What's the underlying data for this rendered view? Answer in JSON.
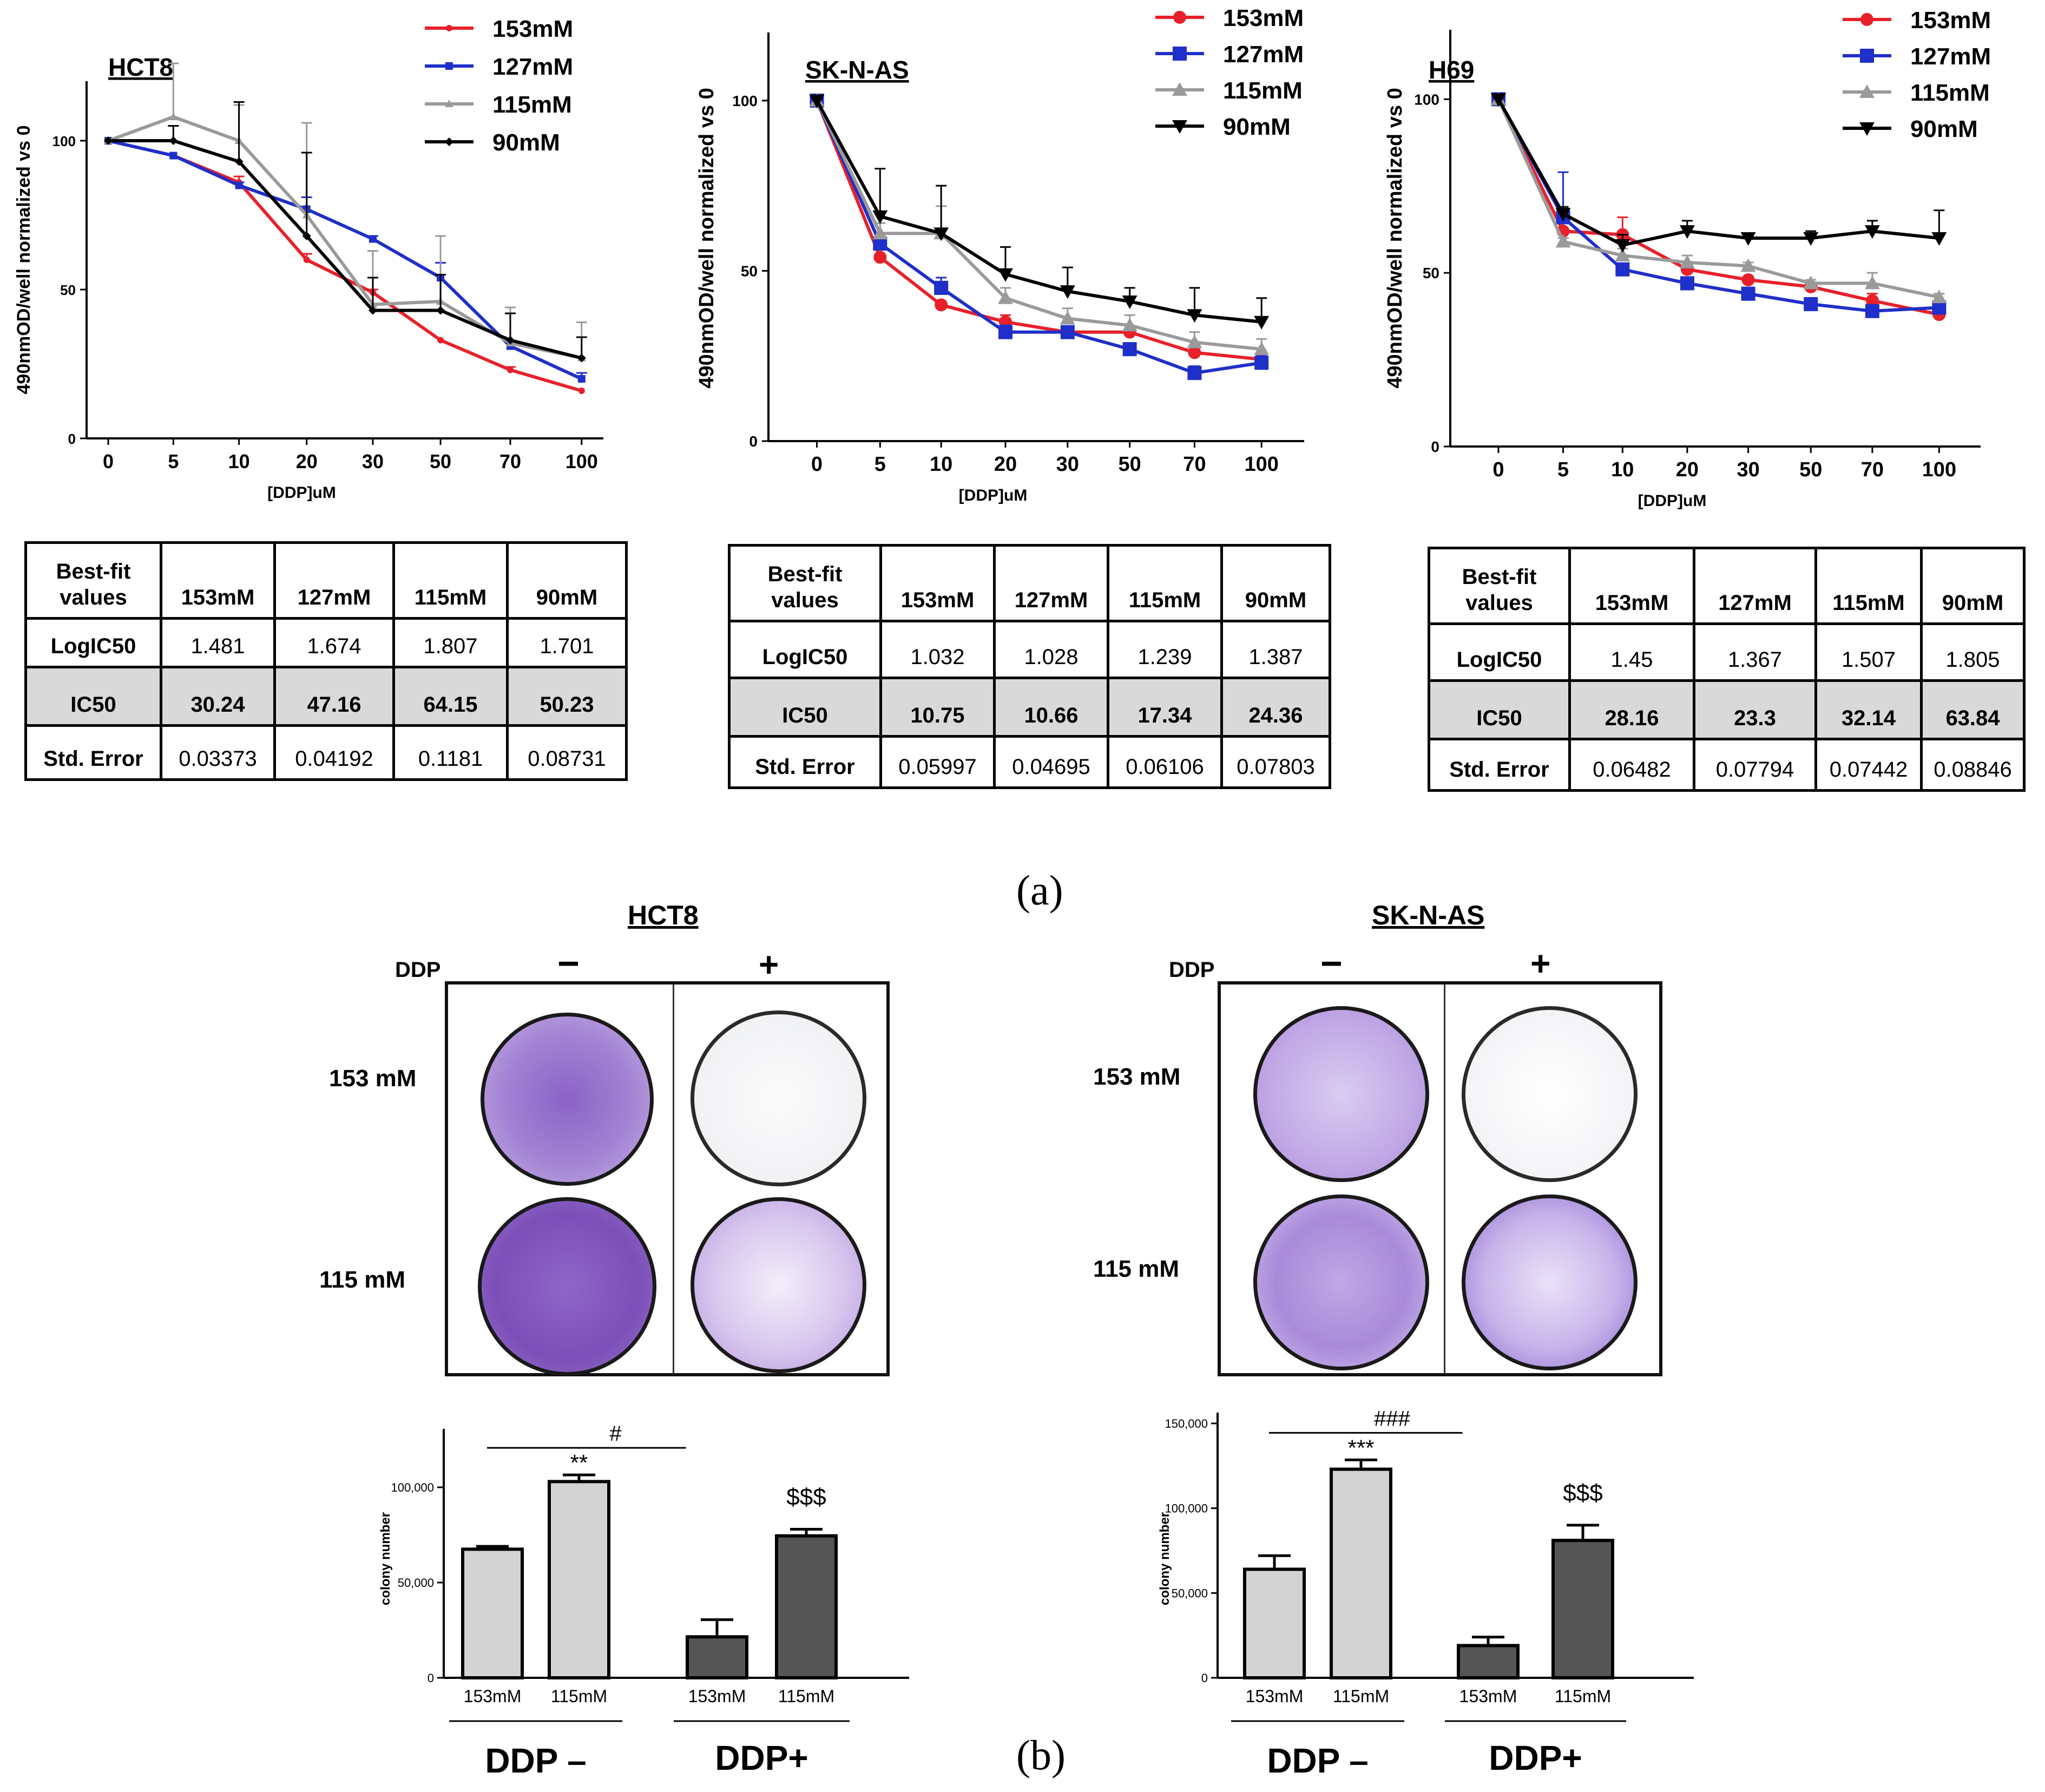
{
  "panel_labels": {
    "a": "(a)",
    "b": "(b)"
  },
  "colors": {
    "c153": "#e8202a",
    "c127": "#1f2fc9",
    "c115": "#9a9a9a",
    "c90": "#000000",
    "bar_light": "#d3d3d3",
    "bar_dark": "#555555",
    "stain_dense": "#7b4fb8",
    "stain_light": "#efe9f7"
  },
  "table_header": {
    "label_line1": "Best-fit",
    "label_line2": "values",
    "cols": [
      "153mM",
      "127mM",
      "115mM",
      "90mM"
    ]
  },
  "table_row_labels": [
    "LogIC50",
    "IC50",
    "Std. Error"
  ],
  "charts": [
    {
      "title": "HCT8",
      "ylabel": "490nmOD/well normalized vs 0",
      "xlabel": "[DDP]uM",
      "xticks": [
        "0",
        "5",
        "10",
        "20",
        "30",
        "50",
        "70",
        "100"
      ],
      "yticks": [
        "0",
        "50",
        "100"
      ],
      "legend": [
        "153mM",
        "127mM",
        "115mM",
        "90mM"
      ],
      "table": {
        "LogIC50": [
          "1.481",
          "1.674",
          "1.807",
          "1.701"
        ],
        "IC50": [
          "30.24",
          "47.16",
          "64.15",
          "50.23"
        ],
        "StdError": [
          "0.03373",
          "0.04192",
          "0.1181",
          "0.08731"
        ]
      }
    },
    {
      "title": "SK-N-AS",
      "ylabel": "490nmOD/well normalized vs 0",
      "xlabel": "[DDP]uM",
      "xticks": [
        "0",
        "5",
        "10",
        "20",
        "30",
        "50",
        "70",
        "100"
      ],
      "yticks": [
        "0",
        "50",
        "100"
      ],
      "legend": [
        "153mM",
        "127mM",
        "115mM",
        "90mM"
      ],
      "table": {
        "LogIC50": [
          "1.032",
          "1.028",
          "1.239",
          "1.387"
        ],
        "IC50": [
          "10.75",
          "10.66",
          "17.34",
          "24.36"
        ],
        "StdError": [
          "0.05997",
          "0.04695",
          "0.06106",
          "0.07803"
        ]
      }
    },
    {
      "title": "H69",
      "ylabel": "490nmOD/well normalized vs 0",
      "xlabel": "[DDP]uM",
      "xticks": [
        "0",
        "5",
        "10",
        "20",
        "30",
        "50",
        "70",
        "100"
      ],
      "yticks": [
        "0",
        "50",
        "100"
      ],
      "legend": [
        "153mM",
        "127mM",
        "115mM",
        "90mM"
      ],
      "table": {
        "LogIC50": [
          "1.45",
          "1.367",
          "1.507",
          "1.805"
        ],
        "IC50": [
          "28.16",
          "23.3",
          "32.14",
          "63.84"
        ],
        "StdError": [
          "0.06482",
          "0.07794",
          "0.07442",
          "0.08846"
        ]
      }
    }
  ],
  "colony": [
    {
      "title": "HCT8",
      "ddp_label": "DDP",
      "minus": "−",
      "plus": "+",
      "rows": [
        "153 mM",
        "115 mM"
      ],
      "ylabel": "colony number",
      "yticks": [
        "0",
        "50,000",
        "100,000"
      ],
      "bar_labels": [
        "153mM",
        "115mM",
        "153mM",
        "115mM"
      ],
      "group_labels": [
        "DDP –",
        "DDP+"
      ],
      "annotations": {
        "hash": "#",
        "stars": "**",
        "dollars": "$$$"
      }
    },
    {
      "title": "SK-N-AS",
      "ddp_label": "DDP",
      "minus": "−",
      "plus": "+",
      "rows": [
        "153 mM",
        "115 mM"
      ],
      "ylabel": "colony number",
      "yticks": [
        "0",
        "50,000",
        "100,000",
        "150,000"
      ],
      "bar_labels": [
        "153mM",
        "115mM",
        "153mM",
        "115mM"
      ],
      "group_labels": [
        "DDP –",
        "DDP+"
      ],
      "annotations": {
        "hash": "###",
        "stars": "***",
        "dollars": "$$$"
      }
    }
  ],
  "chart_data": [
    {
      "type": "line",
      "title": "HCT8",
      "xlabel": "[DDP]uM",
      "ylabel": "490nmOD/well normalized vs 0",
      "categories": [
        "0",
        "5",
        "10",
        "20",
        "30",
        "50",
        "70",
        "100"
      ],
      "ylim": [
        0,
        120
      ],
      "series": [
        {
          "name": "153mM",
          "marker": "dot",
          "values": [
            100,
            95,
            86,
            60,
            49,
            33,
            23,
            16
          ],
          "err": [
            0,
            0,
            2,
            2,
            1,
            0,
            1,
            0
          ]
        },
        {
          "name": "127mM",
          "marker": "square-small",
          "values": [
            100,
            95,
            85,
            77,
            67,
            54,
            31,
            20
          ],
          "err": [
            0,
            0,
            1,
            4,
            1,
            5,
            1,
            2
          ]
        },
        {
          "name": "115mM",
          "marker": "triangle-small",
          "values": [
            100,
            108,
            100,
            75,
            45,
            46,
            32,
            27
          ],
          "err": [
            0,
            18,
            12,
            31,
            18,
            22,
            12,
            12
          ]
        },
        {
          "name": "90mM",
          "marker": "diamond-small",
          "values": [
            100,
            100,
            93,
            68,
            43,
            43,
            33,
            27
          ],
          "err": [
            0,
            5,
            20,
            28,
            11,
            12,
            9,
            7
          ]
        }
      ]
    },
    {
      "type": "line",
      "title": "SK-N-AS",
      "xlabel": "[DDP]uM",
      "ylabel": "490nmOD/well normalized vs 0",
      "categories": [
        "0",
        "5",
        "10",
        "20",
        "30",
        "50",
        "70",
        "100"
      ],
      "ylim": [
        0,
        120
      ],
      "series": [
        {
          "name": "153mM",
          "marker": "circle",
          "values": [
            100,
            54,
            40,
            35,
            32,
            32,
            26,
            24
          ],
          "err": [
            0,
            0,
            1,
            2,
            1,
            1,
            2,
            2
          ]
        },
        {
          "name": "127mM",
          "marker": "square",
          "values": [
            100,
            58,
            45,
            32,
            32,
            27,
            20,
            23
          ],
          "err": [
            0,
            1,
            3,
            2,
            1,
            1,
            2,
            2
          ]
        },
        {
          "name": "115mM",
          "marker": "triangle",
          "values": [
            100,
            61,
            61,
            42,
            36,
            34,
            29,
            27
          ],
          "err": [
            0,
            3,
            8,
            3,
            3,
            3,
            3,
            3
          ]
        },
        {
          "name": "90mM",
          "marker": "triangle-down",
          "values": [
            100,
            66,
            61,
            49,
            44,
            41,
            37,
            35
          ],
          "err": [
            0,
            14,
            14,
            8,
            7,
            4,
            8,
            7
          ]
        }
      ]
    },
    {
      "type": "line",
      "title": "H69",
      "xlabel": "[DDP]uM",
      "ylabel": "490nmOD/well normalized vs 0",
      "categories": [
        "0",
        "5",
        "10",
        "20",
        "30",
        "50",
        "70",
        "100"
      ],
      "ylim": [
        0,
        120
      ],
      "series": [
        {
          "name": "153mM",
          "marker": "circle",
          "values": [
            100,
            62,
            61,
            51,
            48,
            46,
            42,
            38
          ],
          "err": [
            0,
            3,
            5,
            2,
            1,
            1,
            2,
            1
          ]
        },
        {
          "name": "127mM",
          "marker": "square",
          "values": [
            100,
            66,
            51,
            47,
            44,
            41,
            39,
            40
          ],
          "err": [
            0,
            13,
            1,
            1,
            1,
            1,
            1,
            1
          ]
        },
        {
          "name": "115mM",
          "marker": "triangle",
          "values": [
            100,
            59,
            55,
            53,
            52,
            47,
            47,
            43
          ],
          "err": [
            0,
            1,
            2,
            2,
            1,
            1,
            3,
            1
          ]
        },
        {
          "name": "90mM",
          "marker": "triangle-down",
          "values": [
            100,
            67,
            58,
            62,
            60,
            60,
            62,
            60
          ],
          "err": [
            0,
            2,
            3,
            3,
            1,
            2,
            3,
            8
          ]
        }
      ]
    },
    {
      "type": "bar",
      "title": "HCT8",
      "ylabel": "colony number",
      "categories": [
        "153mM",
        "115mM",
        "153mM",
        "115mM"
      ],
      "groups": [
        "DDP –",
        "DDP+"
      ],
      "ylim": [
        0,
        125000
      ],
      "values": [
        67500,
        103000,
        21500,
        74500
      ],
      "err": [
        1500,
        3500,
        9000,
        3500
      ]
    },
    {
      "type": "bar",
      "title": "SK-N-AS",
      "ylabel": "colony number",
      "categories": [
        "153mM",
        "115mM",
        "153mM",
        "115mM"
      ],
      "groups": [
        "DDP –",
        "DDP+"
      ],
      "ylim": [
        0,
        150000
      ],
      "values": [
        64000,
        123000,
        19000,
        81000
      ],
      "err": [
        8000,
        5500,
        5000,
        9000
      ]
    }
  ]
}
